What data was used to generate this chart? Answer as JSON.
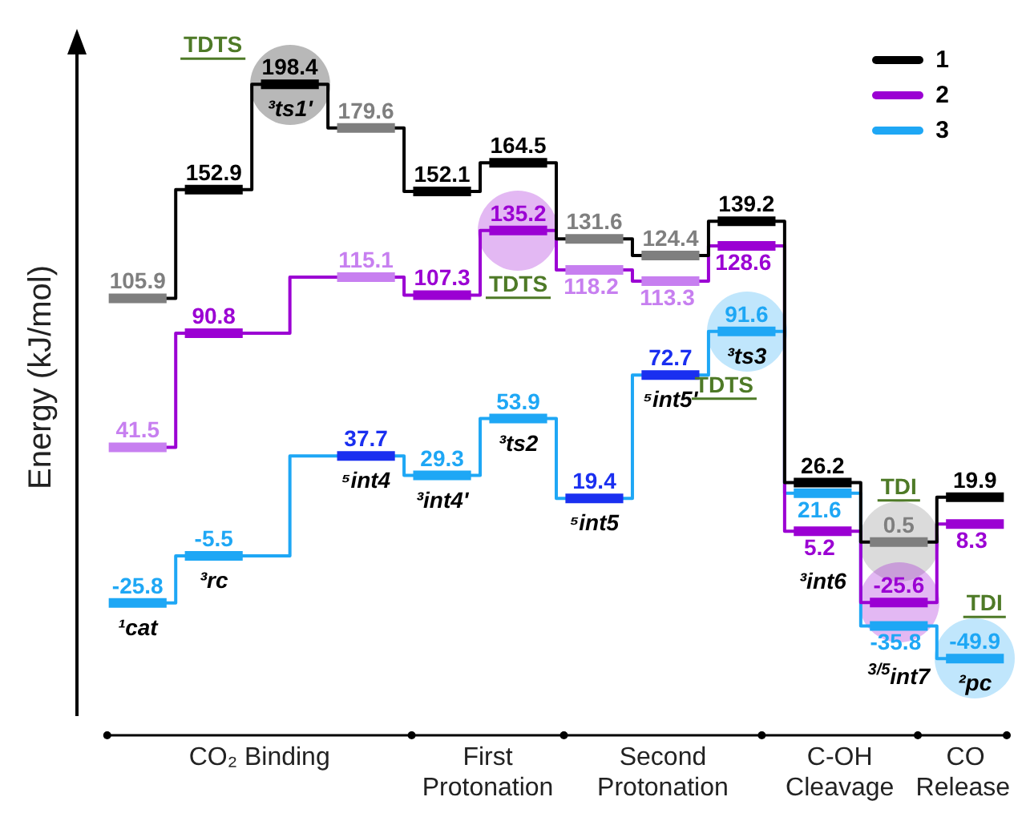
{
  "chart_data": {
    "type": "step",
    "ylabel": "Energy (kJ/mol)",
    "categories": [
      "¹cat",
      "³rc",
      "³ts1'",
      "⁵int4",
      "³int4'",
      "³ts2",
      "⁵int5",
      "⁵int5'",
      "³ts3",
      "³int6",
      "$^{3/5}$int7",
      "²pc"
    ],
    "series": [
      {
        "name": "1",
        "color": "#000000",
        "values": [
          105.9,
          152.9,
          198.4,
          179.6,
          152.1,
          164.5,
          131.6,
          124.4,
          139.2,
          26.2,
          0.5,
          19.9
        ],
        "colors": [
          "#7f7f7f",
          "#000000",
          "#000000",
          "#7f7f7f",
          "#000000",
          "#000000",
          "#7f7f7f",
          "#7f7f7f",
          "#000000",
          "#000000",
          "#7f7f7f",
          "#000000"
        ]
      },
      {
        "name": "2",
        "color": "#9b00d3",
        "values": [
          41.5,
          90.8,
          null,
          115.1,
          107.3,
          135.2,
          118.2,
          113.3,
          128.6,
          5.2,
          -25.6,
          8.3
        ],
        "colors": [
          "#c77ff0",
          "#9b00d3",
          null,
          "#c77ff0",
          "#9b00d3",
          "#9b00d3",
          "#c77ff0",
          "#c77ff0",
          "#9b00d3",
          "#9b00d3",
          "#9b00d3",
          "#9b00d3"
        ]
      },
      {
        "name": "3",
        "color": "#1ea7f5",
        "values": [
          -25.8,
          -5.5,
          null,
          37.7,
          29.3,
          53.9,
          19.4,
          72.7,
          91.6,
          21.6,
          -35.8,
          -49.9
        ],
        "colors": [
          "#1ea7f5",
          "#1ea7f5",
          null,
          "#1a2ff0",
          "#1ea7f5",
          "#1ea7f5",
          "#1a2ff0",
          "#1a2ff0",
          "#1ea7f5",
          "#1ea7f5",
          "#1ea7f5",
          "#1ea7f5"
        ]
      }
    ],
    "annotations": [
      "TDTS",
      "TDTS",
      "TDTS",
      "TDI",
      "TDI",
      "CO₂ Binding",
      "First Protonation",
      "Second Protonation",
      "C-OH Cleavage",
      "CO Release"
    ],
    "data_labels": true,
    "legend": "top right",
    "line_style": "solid",
    "marker": "none"
  }
}
